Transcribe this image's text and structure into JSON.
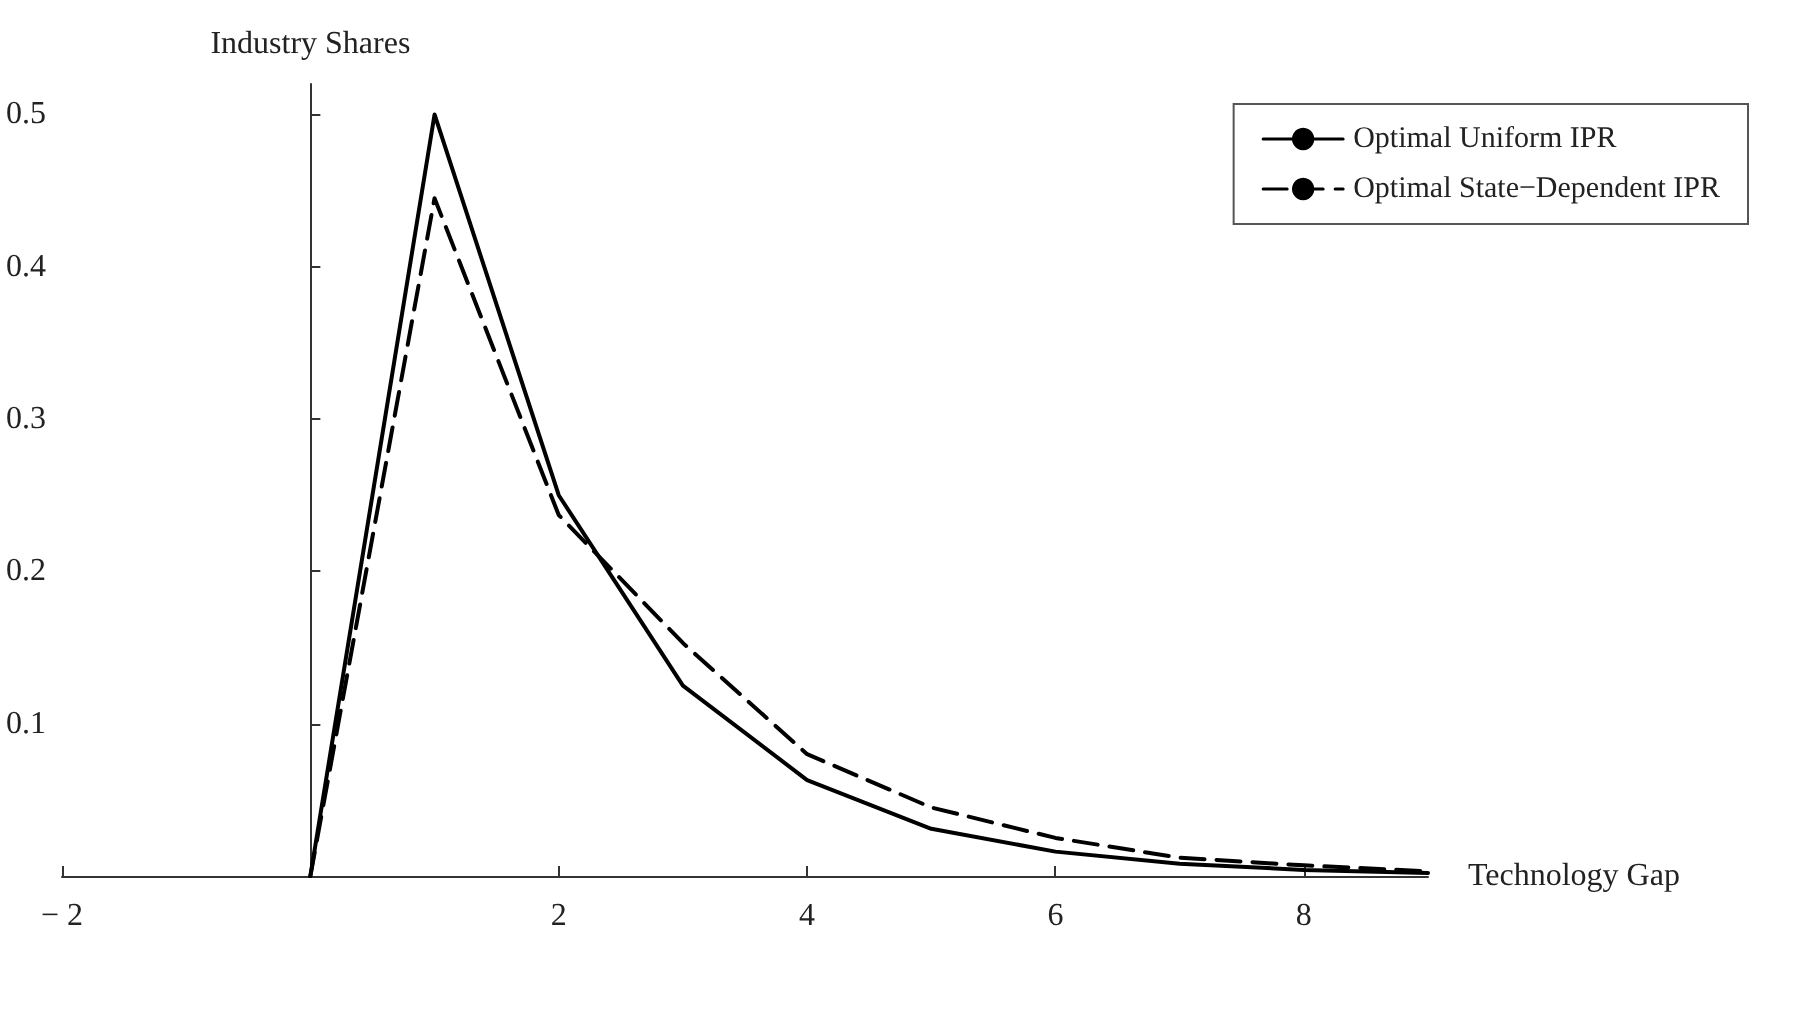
{
  "chart_data": {
    "type": "line",
    "xlabel": "Technology Gap",
    "ylabel": "Industry Shares",
    "x": [
      0,
      1,
      2,
      3,
      4,
      5,
      6,
      7,
      8,
      9
    ],
    "series": [
      {
        "name": "Optimal Uniform IPR",
        "color": "#000000",
        "line_style": "solid",
        "values": [
          0,
          0.5,
          0.25,
          0.125,
          0.063,
          0.031,
          0.016,
          0.008,
          0.004,
          0.002
        ]
      },
      {
        "name": "Optimal State−Dependent IPR",
        "color": "#000000",
        "line_style": "dashed",
        "values": [
          0,
          0.445,
          0.237,
          0.153,
          0.08,
          0.045,
          0.025,
          0.012,
          0.007,
          0.003
        ]
      }
    ],
    "xlim": [
      -2,
      9
    ],
    "xticks": [
      -2,
      2,
      4,
      6,
      8
    ],
    "ylim": [
      0,
      0.52
    ],
    "yticks": [
      0.1,
      0.2,
      0.3,
      0.4,
      0.5
    ],
    "grid": false,
    "legend": "top right",
    "marker": "none"
  }
}
